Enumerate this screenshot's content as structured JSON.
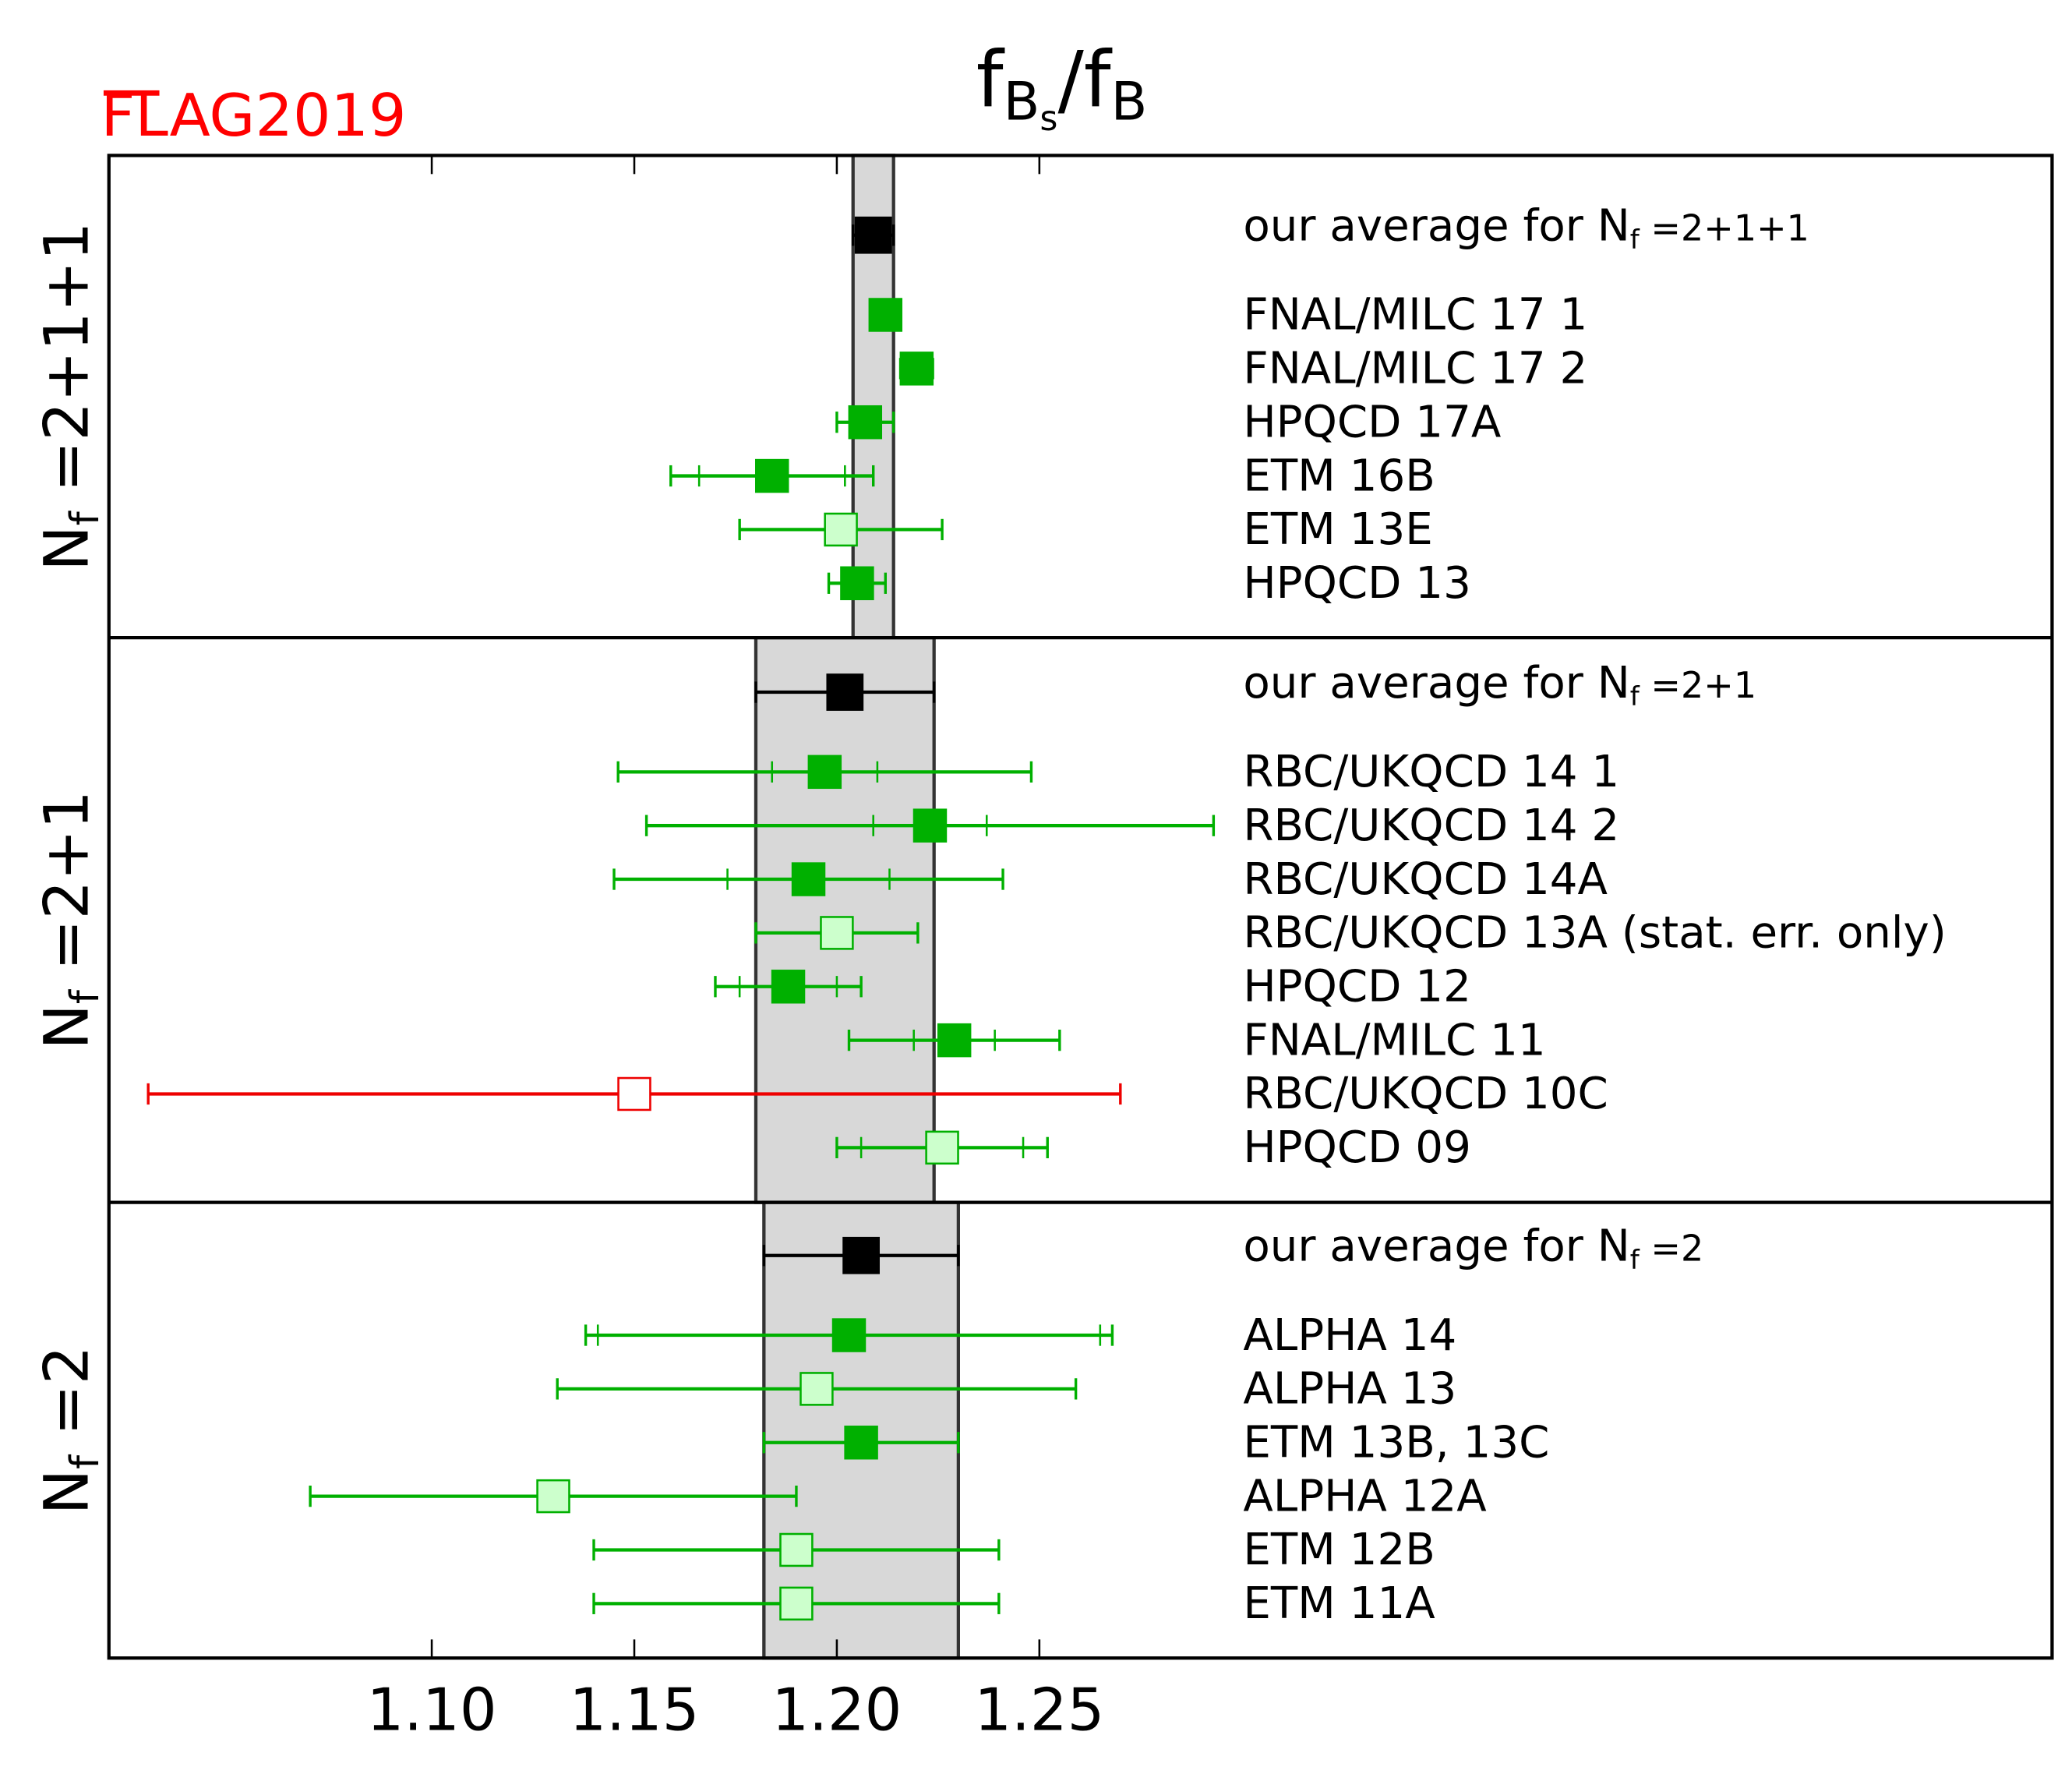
{
  "chart_data": {
    "type": "scatter",
    "title": "f_Bs/f_B",
    "title_parts": {
      "main": "f",
      "sub1": "B",
      "subsub": "s",
      "slash": "/f",
      "sub2": "B"
    },
    "logo": {
      "text_a": "FLAG",
      "text_b": "2019",
      "color": "#ff0000"
    },
    "xlim": [
      1.0203,
      1.5
    ],
    "xticks": [
      1.1,
      1.15,
      1.2,
      1.25
    ],
    "xtick_labels": [
      "1.10",
      "1.15",
      "1.20",
      "1.25"
    ],
    "colors": {
      "average": "#000000",
      "green": "#00b000",
      "light_fill": "#ccffcc",
      "red": "#ee0000",
      "band": "#d8d8d8"
    },
    "panels": [
      {
        "label_main": "N",
        "label_sub": "f",
        "label_rest": " =2+1+1",
        "average": {
          "prefix": "our average for ",
          "nf_main": "N",
          "nf_sub": "f",
          "nf_rest": " =2+1+1",
          "value": 1.209,
          "err": 0.005
        },
        "results": [
          {
            "name": "FNAL/MILC 17 1",
            "value": 1.212,
            "err": 0.003,
            "style": "filled"
          },
          {
            "name": "FNAL/MILC 17 2",
            "value": 1.2197,
            "err": 0.004,
            "style": "filled"
          },
          {
            "name": "HPQCD 17A",
            "value": 1.207,
            "err": 0.007,
            "style": "filled"
          },
          {
            "name": "ETM 16B",
            "value": 1.184,
            "err": 0.025,
            "stat_err": 0.018,
            "style": "filled"
          },
          {
            "name": "ETM 13E",
            "value": 1.201,
            "err": 0.025,
            "style": "open"
          },
          {
            "name": "HPQCD 13",
            "value": 1.205,
            "err": 0.007,
            "style": "filled"
          }
        ]
      },
      {
        "label_main": "N",
        "label_sub": "f",
        "label_rest": " =2+1",
        "average": {
          "prefix": "our average for ",
          "nf_main": "N",
          "nf_sub": "f",
          "nf_rest": " =2+1",
          "value": 1.202,
          "err": 0.022
        },
        "results": [
          {
            "name": "RBC/UKQCD 14 1",
            "value": 1.197,
            "err": 0.051,
            "stat_err": 0.013,
            "style": "filled"
          },
          {
            "name": "RBC/UKQCD 14 2",
            "value": 1.223,
            "err": 0.07,
            "stat_err": 0.014,
            "style": "filled"
          },
          {
            "name": "RBC/UKQCD 14A",
            "value": 1.193,
            "err": 0.048,
            "stat_err": 0.02,
            "style": "filled"
          },
          {
            "name": "RBC/UKQCD 13A (stat. err. only)",
            "value": 1.2,
            "err": 0.02,
            "style": "open"
          },
          {
            "name": "HPQCD 12",
            "value": 1.188,
            "err": 0.018,
            "stat_err": 0.012,
            "style": "filled"
          },
          {
            "name": "FNAL/MILC 11",
            "value": 1.229,
            "err": 0.026,
            "stat_err": 0.01,
            "style": "filled"
          },
          {
            "name": "RBC/UKQCD 10C",
            "value": 1.15,
            "err": 0.12,
            "style": "red"
          },
          {
            "name": "HPQCD 09",
            "value": 1.226,
            "err": 0.026,
            "stat_err": 0.02,
            "style": "open"
          }
        ]
      },
      {
        "label_main": "N",
        "label_sub": "f",
        "label_rest": " =2",
        "average": {
          "prefix": "our average for ",
          "nf_main": "N",
          "nf_sub": "f",
          "nf_rest": " =2",
          "value": 1.206,
          "err": 0.024
        },
        "results": [
          {
            "name": "ALPHA 14",
            "value": 1.203,
            "err": 0.065,
            "stat_err": 0.062,
            "style": "filled"
          },
          {
            "name": "ALPHA 13",
            "value": 1.195,
            "err": 0.064,
            "style": "open"
          },
          {
            "name": "ETM 13B, 13C",
            "value": 1.206,
            "err": 0.024,
            "style": "filled"
          },
          {
            "name": "ALPHA 12A",
            "value": 1.13,
            "err": 0.06,
            "style": "open"
          },
          {
            "name": "ETM 12B",
            "value": 1.19,
            "err": 0.05,
            "style": "open"
          },
          {
            "name": "ETM 11A",
            "value": 1.19,
            "err": 0.05,
            "style": "open"
          }
        ]
      }
    ]
  }
}
